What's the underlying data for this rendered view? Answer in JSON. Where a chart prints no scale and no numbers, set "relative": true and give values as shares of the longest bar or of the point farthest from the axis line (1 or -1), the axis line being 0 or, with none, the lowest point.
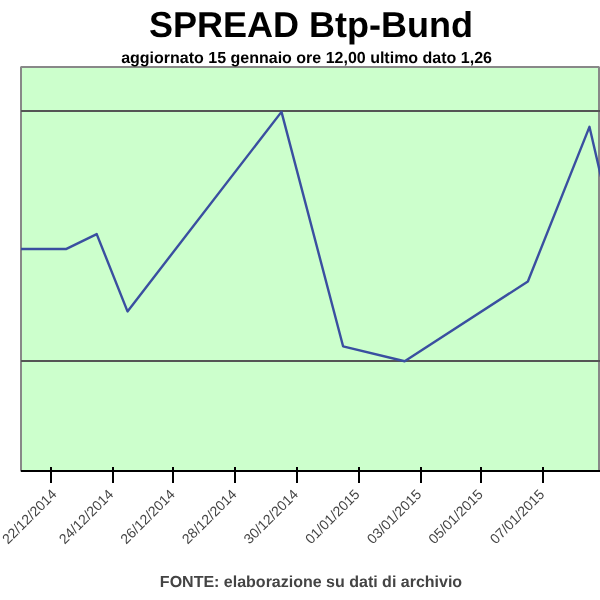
{
  "chart_data": {
    "type": "line",
    "title": "SPREAD Btp-Bund",
    "subtitle": "aggiornato 15 gennaio ore 12,00  ultimo dato  1,26",
    "annotations": [
      "FONTE: elaborazione su dati di archivio"
    ],
    "relative": true,
    "x": [
      "2014-12-21T01:00",
      "2014-12-22T12:00",
      "2014-12-23T12:00",
      "2014-12-24T12:00",
      "2014-12-29T12:00",
      "2014-12-31T12:00",
      "2015-01-02T12:00",
      "2015-01-06T12:00",
      "2015-01-08T12:00",
      "2015-01-08T21:00"
    ],
    "series": [
      {
        "color": "#3a4fa0",
        "values": [
          0.45,
          0.45,
          0.51,
          0.2,
          1.0,
          0.06,
          0.0,
          0.32,
          0.94,
          0.74
        ]
      }
    ],
    "xlim": [
      "2014-12-21T01:00",
      "2015-01-08T21:00"
    ],
    "xticks": [
      {
        "value": "2014-12-22",
        "label": "22/12/2014"
      },
      {
        "value": "2014-12-24",
        "label": "24/12/2014"
      },
      {
        "value": "2014-12-26",
        "label": "26/12/2014"
      },
      {
        "value": "2014-12-28",
        "label": "28/12/2014"
      },
      {
        "value": "2014-12-30",
        "label": "30/12/2014"
      },
      {
        "value": "2015-01-01",
        "label": "01/01/2015"
      },
      {
        "value": "2015-01-03",
        "label": "03/01/2015"
      },
      {
        "value": "2015-01-05",
        "label": "05/01/2015"
      },
      {
        "value": "2015-01-07",
        "label": "07/01/2015"
      }
    ],
    "tick_labels": "x",
    "grid": "y",
    "marker": "none",
    "line_style": "solid"
  }
}
